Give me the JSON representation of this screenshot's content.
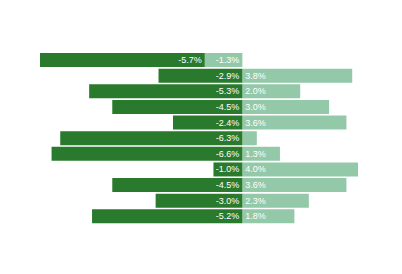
{
  "chart_data": {
    "type": "bar",
    "orientation": "horizontal",
    "stacked": true,
    "data_labels": true,
    "tick_labels": false,
    "xlim": [
      -7,
      4
    ],
    "series": [
      {
        "color": "#93c9a8",
        "values": [
          -1.3,
          3.8,
          2.0,
          3.0,
          3.6,
          0.5,
          1.3,
          4.0,
          3.6,
          2.3,
          1.8
        ],
        "value_labels": [
          "-1.3%",
          "3.8%",
          "2.0%",
          "3.0%",
          "3.6%",
          null,
          "1.3%",
          "4.0%",
          "3.6%",
          "2.3%",
          "1.8%"
        ]
      },
      {
        "color": "#2a7a2e",
        "values": [
          -5.7,
          -2.9,
          -5.3,
          -4.5,
          -2.4,
          -6.3,
          -6.6,
          -1.0,
          -4.5,
          -3.0,
          -5.2
        ],
        "value_labels": [
          "-5.7%",
          "-2.9%",
          "-5.3%",
          "-4.5%",
          "-2.4%",
          "-6.3%",
          "-6.6%",
          "-1.0%",
          "-4.5%",
          "-3.0%",
          "-5.2%"
        ]
      }
    ]
  }
}
